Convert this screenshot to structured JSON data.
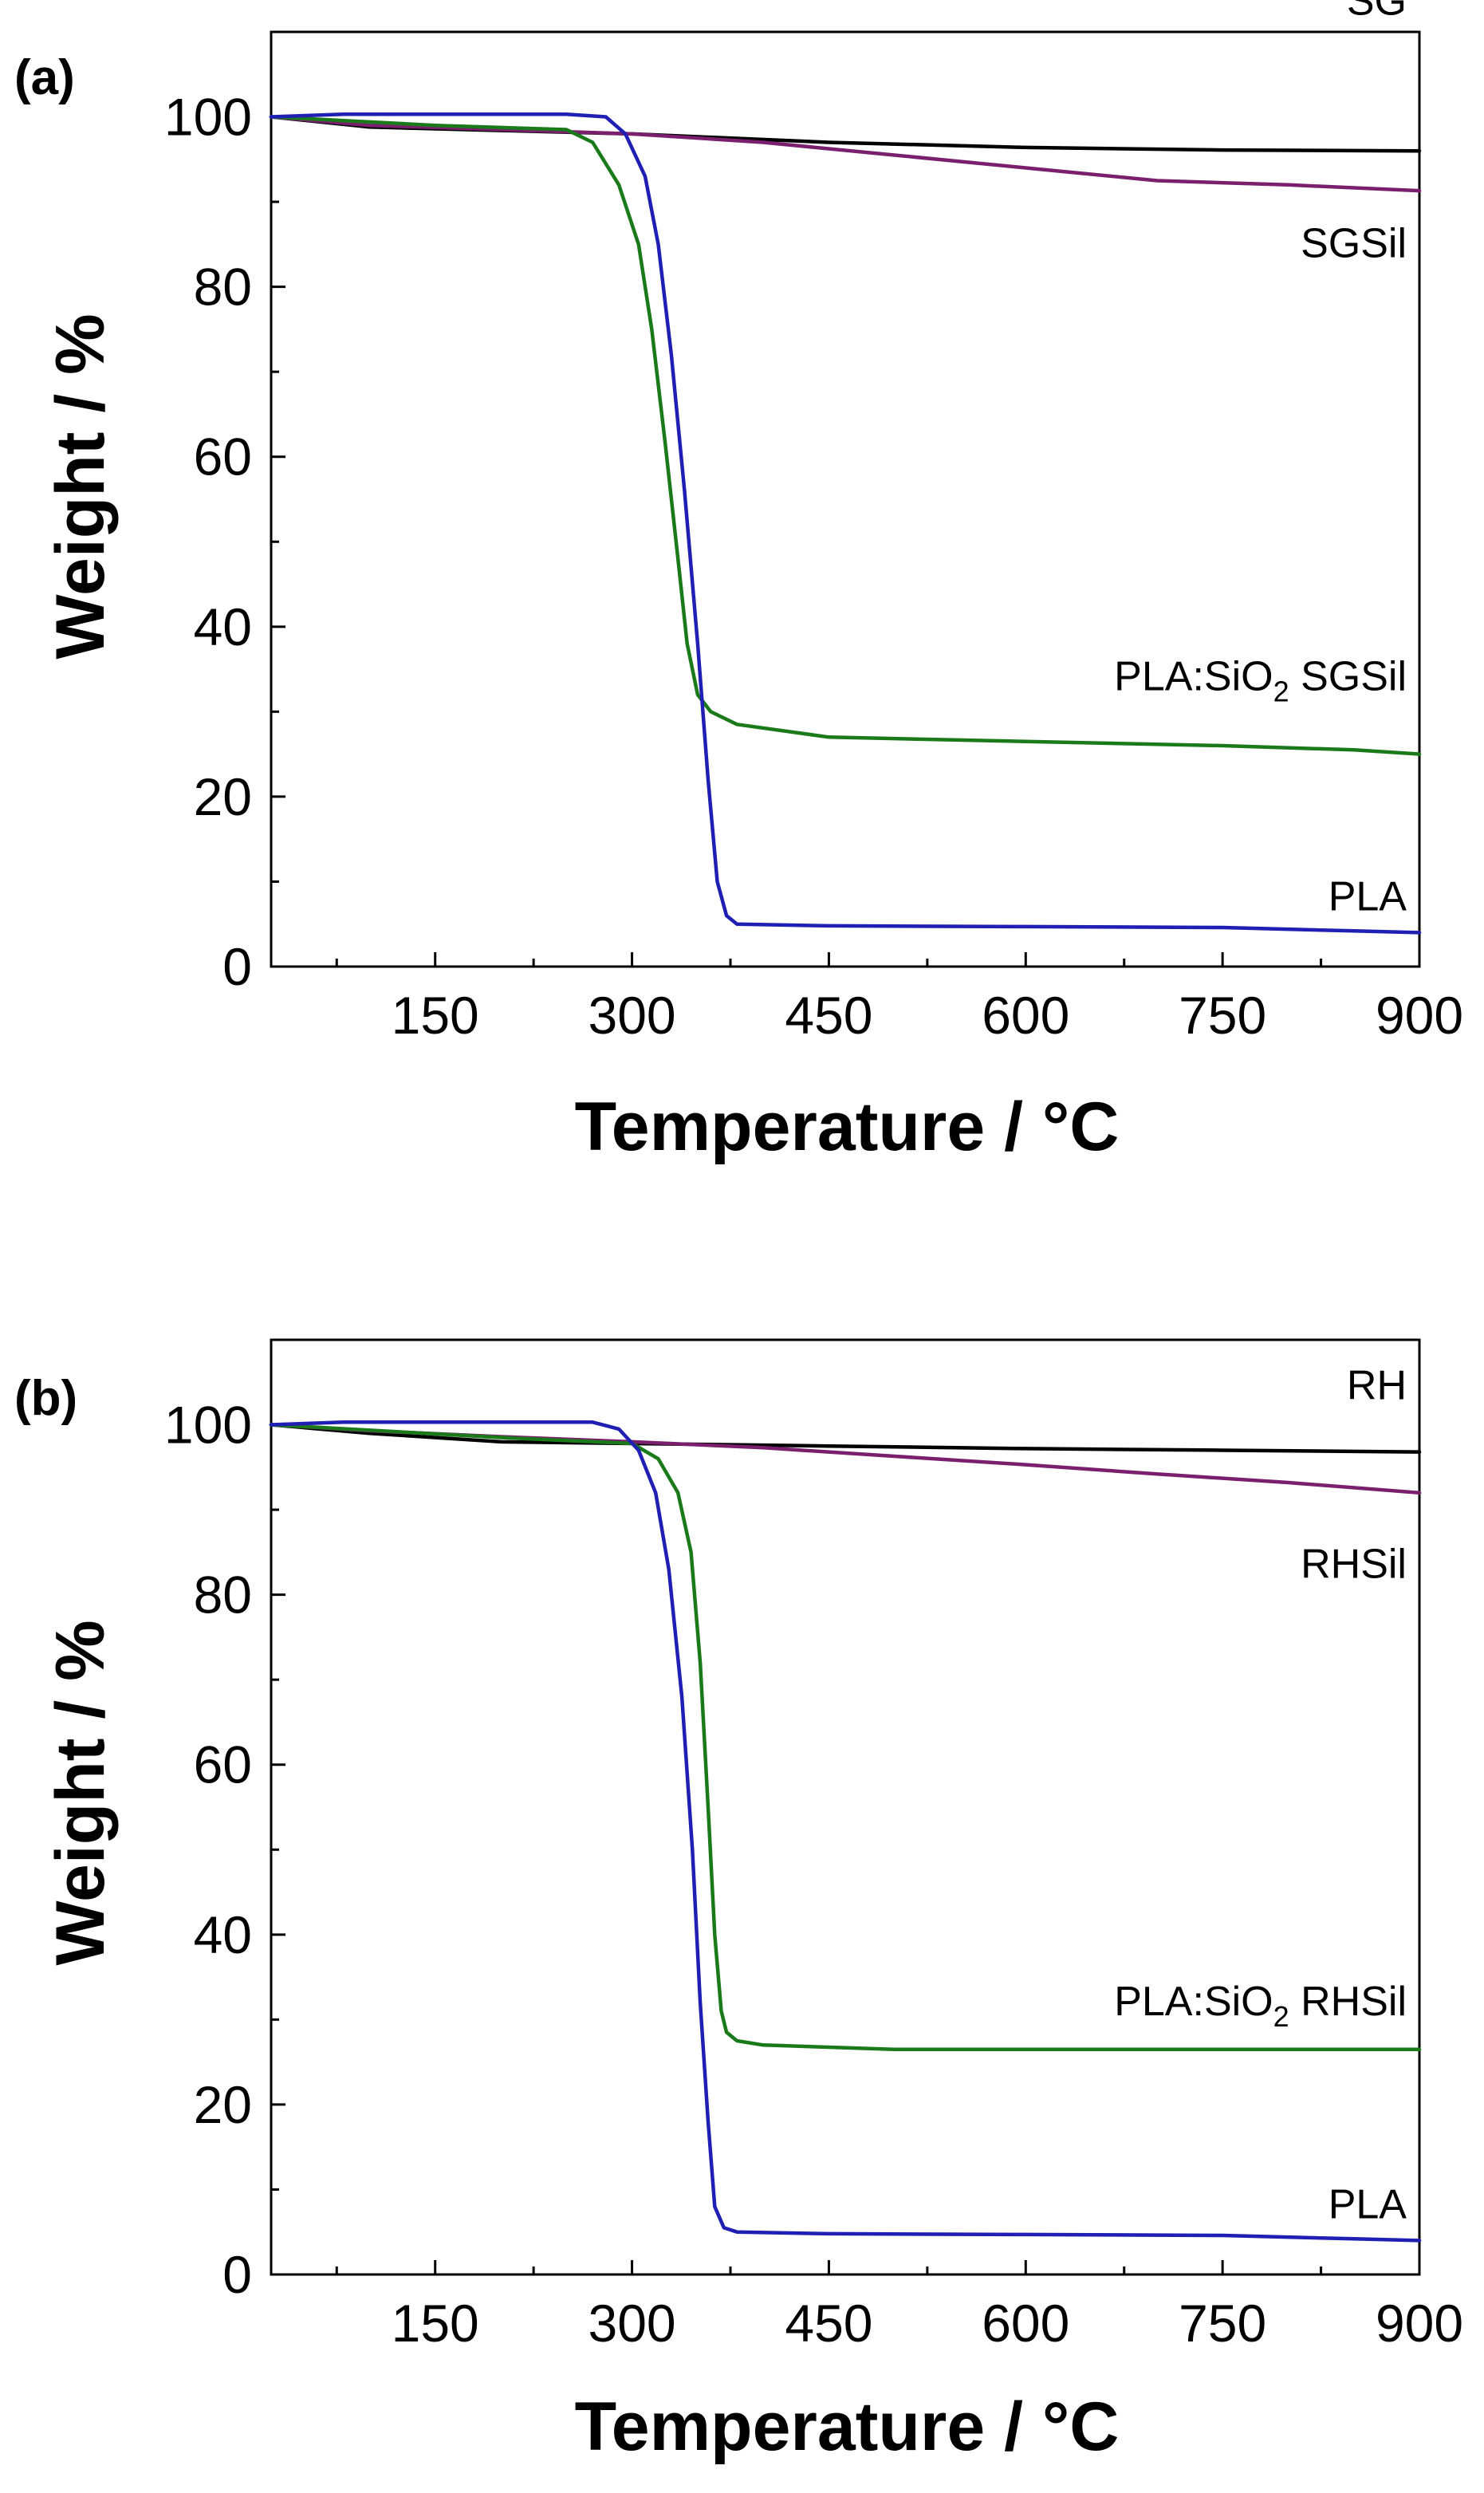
{
  "chart_data": [
    {
      "type": "line",
      "panel_label": "(a)",
      "xlabel": "Temperature / °C",
      "ylabel": "Weight / %",
      "xlim": [
        25,
        900
      ],
      "ylim": [
        0,
        110
      ],
      "xticks": [
        150,
        300,
        450,
        600,
        750,
        900
      ],
      "yticks": [
        0,
        20,
        40,
        60,
        80,
        100
      ],
      "series": [
        {
          "name": "SG",
          "label": "SG",
          "color": "#000000",
          "x": [
            25,
            100,
            200,
            300,
            450,
            600,
            750,
            900
          ],
          "y": [
            100,
            98.8,
            98.4,
            98,
            97,
            96.4,
            96.1,
            96
          ]
        },
        {
          "name": "SGSil",
          "label": "SGSil",
          "color": "#7a1f6e",
          "x": [
            25,
            100,
            200,
            300,
            400,
            500,
            600,
            700,
            800,
            900
          ],
          "y": [
            100,
            99,
            98.5,
            98,
            97,
            95.5,
            94,
            92.5,
            92,
            91.3
          ]
        },
        {
          "name": "PLA:SiO2 SGSil",
          "label_main": "PLA:SiO",
          "label_sub": "2",
          "label_tail": " SGSil",
          "color": "#1a7a1a",
          "x": [
            25,
            150,
            250,
            270,
            290,
            305,
            315,
            325,
            335,
            342,
            350,
            360,
            380,
            450,
            600,
            750,
            850,
            900
          ],
          "y": [
            100,
            99,
            98.5,
            97,
            92,
            85,
            75,
            62,
            48,
            38,
            32,
            30,
            28.5,
            27,
            26.5,
            26,
            25.5,
            25
          ]
        },
        {
          "name": "PLA",
          "label": "PLA",
          "color": "#1f1fb4",
          "x": [
            25,
            80,
            250,
            280,
            295,
            310,
            320,
            330,
            340,
            350,
            358,
            365,
            372,
            380,
            450,
            600,
            750,
            850,
            900
          ],
          "y": [
            100,
            100.3,
            100.3,
            100,
            98,
            93,
            85,
            72,
            56,
            38,
            22,
            10,
            6,
            5,
            4.8,
            4.7,
            4.6,
            4.2,
            4
          ]
        }
      ]
    },
    {
      "type": "line",
      "panel_label": "(b)",
      "xlabel": "Temperature / °C",
      "ylabel": "Weight / %",
      "xlim": [
        25,
        900
      ],
      "ylim": [
        0,
        110
      ],
      "xticks": [
        150,
        300,
        450,
        600,
        750,
        900
      ],
      "yticks": [
        0,
        20,
        40,
        60,
        80,
        100
      ],
      "series": [
        {
          "name": "RH",
          "label": "RH",
          "color": "#000000",
          "x": [
            25,
            100,
            200,
            300,
            450,
            600,
            750,
            900
          ],
          "y": [
            100,
            99,
            98,
            97.8,
            97.5,
            97.2,
            97,
            96.8
          ]
        },
        {
          "name": "RHSil",
          "label": "RHSil",
          "color": "#7a1f6e",
          "x": [
            25,
            100,
            200,
            300,
            400,
            500,
            600,
            700,
            800,
            900
          ],
          "y": [
            100,
            99.3,
            98.6,
            98,
            97.3,
            96.3,
            95.3,
            94.2,
            93.2,
            92
          ]
        },
        {
          "name": "PLA:SiO2 RHSil",
          "label_main": "PLA:SiO",
          "label_sub": "2",
          "label_tail": " RHSil",
          "color": "#1a7a1a",
          "x": [
            25,
            200,
            300,
            320,
            335,
            345,
            352,
            358,
            363,
            368,
            372,
            380,
            400,
            500,
            700,
            850,
            900
          ],
          "y": [
            100,
            98.5,
            97.8,
            96,
            92,
            85,
            72,
            55,
            40,
            31,
            28.5,
            27.5,
            27,
            26.5,
            26.5,
            26.5,
            26.5
          ]
        },
        {
          "name": "PLA",
          "label": "PLA",
          "color": "#1f1fb4",
          "x": [
            25,
            80,
            270,
            290,
            305,
            318,
            328,
            338,
            346,
            352,
            358,
            363,
            370,
            380,
            450,
            600,
            750,
            850,
            900
          ],
          "y": [
            100,
            100.3,
            100.3,
            99.5,
            97,
            92,
            83,
            68,
            50,
            32,
            18,
            8,
            5.5,
            5,
            4.8,
            4.7,
            4.6,
            4.2,
            4
          ]
        }
      ]
    }
  ]
}
